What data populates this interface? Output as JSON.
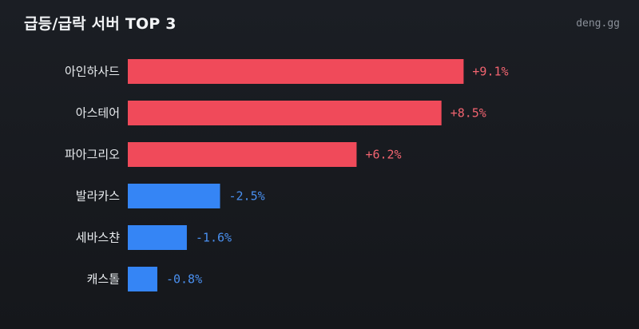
{
  "header": {
    "title": "급등/급락 서버 TOP 3",
    "brand": "deng.gg"
  },
  "colors": {
    "up": "#f04a5a",
    "down": "#3585f5",
    "up_text": "#f26470",
    "down_text": "#4a90f0"
  },
  "chart_data": {
    "type": "bar",
    "orientation": "horizontal",
    "categories": [
      "아인하사드",
      "아스테어",
      "파아그리오",
      "발라카스",
      "세바스챤",
      "캐스톨"
    ],
    "values": [
      9.1,
      8.5,
      6.2,
      -2.5,
      -1.6,
      -0.8
    ],
    "value_labels": [
      "+9.1%",
      "+8.5%",
      "+6.2%",
      "-2.5%",
      "-1.6%",
      "-0.8%"
    ],
    "title": "급등/급락 서버 TOP 3",
    "xlabel": "",
    "ylabel": "",
    "grid": false,
    "legend": "none"
  }
}
